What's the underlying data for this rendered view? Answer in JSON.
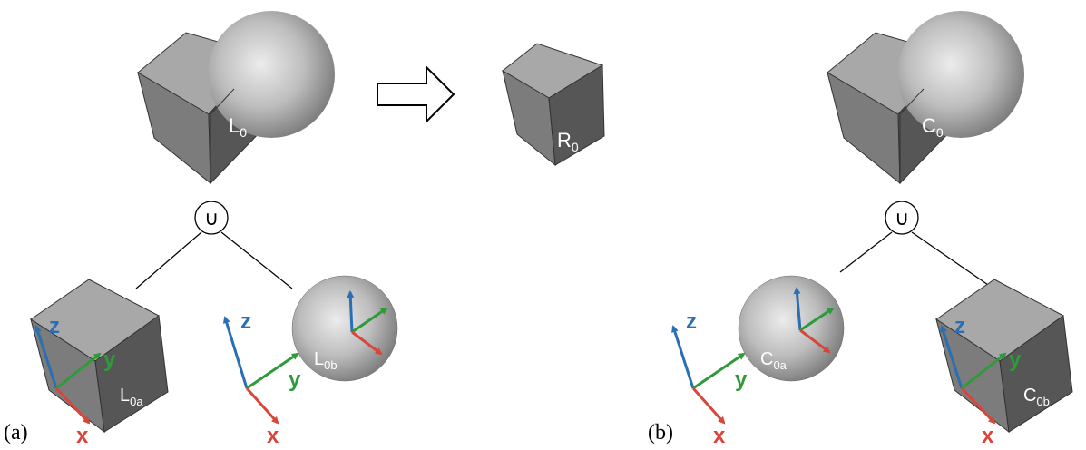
{
  "panels": {
    "a": "(a)",
    "b": "(b)"
  },
  "operator": "∪",
  "axes": {
    "x": "x",
    "y": "y",
    "z": "z"
  },
  "labels": {
    "L0": {
      "base": "L",
      "sub": "0"
    },
    "R0": {
      "base": "R",
      "sub": "0"
    },
    "C0": {
      "base": "C",
      "sub": "0"
    },
    "L0a": {
      "base": "L",
      "sub": "0a"
    },
    "L0b": {
      "base": "L",
      "sub": "0b"
    },
    "C0a": {
      "base": "C",
      "sub": "0a"
    },
    "C0b": {
      "base": "C",
      "sub": "0b"
    }
  },
  "colors": {
    "x_axis": "#d9453b",
    "y_axis": "#2f9a3a",
    "z_axis": "#2a6fb4",
    "cube_top": "#a8a8a8",
    "cube_left": "#7c7c7c",
    "cube_right": "#565656"
  }
}
